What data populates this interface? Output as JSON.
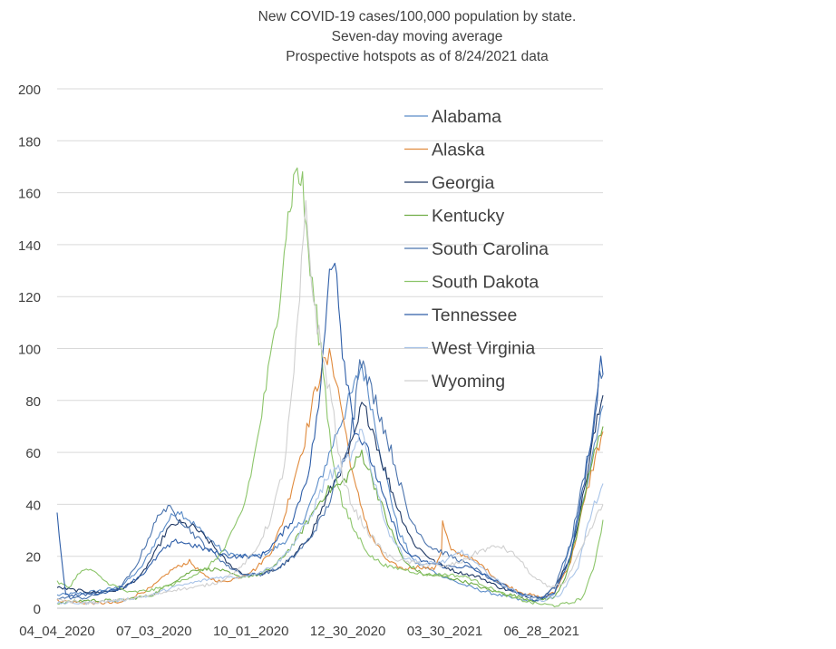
{
  "chart_data": {
    "type": "line",
    "title": [
      "New COVID-19 cases/100,000 population by state.",
      "Seven-day moving average",
      "Prospective hotspots as of 8/24/2021 data"
    ],
    "xlabel": "",
    "ylabel": "",
    "ylim": [
      0,
      200
    ],
    "yticks": [
      0,
      20,
      40,
      60,
      80,
      100,
      120,
      140,
      160,
      180,
      200
    ],
    "xlim": [
      "2020-04-04",
      "2021-08-24"
    ],
    "xticks": [
      "2020-04-04",
      "2020-07-03",
      "2020-10-01",
      "2020-12-30",
      "2021-03-30",
      "2021-06-28"
    ],
    "xtick_labels": [
      "04_04_2020",
      "07_03_2020",
      "10_01_2020",
      "12_30_2020",
      "03_30_2021",
      "06_28_2021"
    ],
    "grid": "horizontal",
    "legend_position": "top-right",
    "series": [
      {
        "name": "Alabama",
        "color": "#5b8cc8",
        "width": 1.1,
        "x": [
          "2020-04-04",
          "2020-05-01",
          "2020-06-01",
          "2020-06-20",
          "2020-07-05",
          "2020-07-15",
          "2020-07-25",
          "2020-08-05",
          "2020-08-20",
          "2020-09-05",
          "2020-09-20",
          "2020-10-05",
          "2020-10-20",
          "2020-11-05",
          "2020-11-20",
          "2020-12-05",
          "2020-12-20",
          "2021-01-05",
          "2021-01-12",
          "2021-01-20",
          "2021-02-01",
          "2021-02-15",
          "2021-03-01",
          "2021-03-20",
          "2021-04-10",
          "2021-05-01",
          "2021-05-20",
          "2021-06-10",
          "2021-06-28",
          "2021-07-10",
          "2021-07-20",
          "2021-08-01",
          "2021-08-10",
          "2021-08-18",
          "2021-08-24"
        ],
        "y": [
          5,
          6,
          8,
          15,
          26,
          33,
          38,
          34,
          28,
          22,
          20,
          20,
          22,
          27,
          35,
          50,
          68,
          85,
          94,
          80,
          55,
          30,
          18,
          14,
          10,
          7,
          5,
          3,
          3,
          6,
          17,
          35,
          50,
          68,
          78
        ]
      },
      {
        "name": "Alaska",
        "color": "#e08a3c",
        "width": 1.1,
        "x": [
          "2020-04-04",
          "2020-05-01",
          "2020-06-01",
          "2020-07-01",
          "2020-07-20",
          "2020-08-05",
          "2020-08-20",
          "2020-09-05",
          "2020-09-20",
          "2020-10-05",
          "2020-10-20",
          "2020-11-01",
          "2020-11-10",
          "2020-11-20",
          "2020-11-28",
          "2020-12-05",
          "2020-12-15",
          "2020-12-25",
          "2021-01-05",
          "2021-01-20",
          "2021-02-05",
          "2021-02-20",
          "2021-03-05",
          "2021-03-20",
          "2021-03-27",
          "2021-03-28",
          "2021-04-05",
          "2021-04-20",
          "2021-05-05",
          "2021-05-20",
          "2021-06-10",
          "2021-06-28",
          "2021-07-10",
          "2021-07-25",
          "2021-08-05",
          "2021-08-15",
          "2021-08-24"
        ],
        "y": [
          3,
          2,
          2,
          8,
          15,
          18,
          12,
          10,
          12,
          15,
          22,
          35,
          50,
          65,
          80,
          92,
          97,
          75,
          48,
          28,
          18,
          15,
          16,
          15,
          22,
          33,
          22,
          20,
          16,
          10,
          6,
          4,
          6,
          18,
          38,
          55,
          68
        ]
      },
      {
        "name": "Georgia",
        "color": "#1f3864",
        "width": 1.1,
        "x": [
          "2020-04-04",
          "2020-04-20",
          "2020-05-10",
          "2020-06-01",
          "2020-06-20",
          "2020-07-05",
          "2020-07-15",
          "2020-07-25",
          "2020-08-10",
          "2020-08-25",
          "2020-09-10",
          "2020-09-25",
          "2020-10-10",
          "2020-10-25",
          "2020-11-10",
          "2020-11-25",
          "2020-12-10",
          "2020-12-25",
          "2021-01-05",
          "2021-01-12",
          "2021-01-20",
          "2021-02-01",
          "2021-02-15",
          "2021-03-01",
          "2021-03-20",
          "2021-04-10",
          "2021-05-01",
          "2021-05-20",
          "2021-06-10",
          "2021-06-28",
          "2021-07-10",
          "2021-07-25",
          "2021-08-05",
          "2021-08-15",
          "2021-08-24"
        ],
        "y": [
          8,
          7,
          6,
          7,
          12,
          22,
          30,
          33,
          31,
          25,
          17,
          13,
          13,
          15,
          20,
          28,
          42,
          55,
          65,
          78,
          72,
          55,
          38,
          25,
          18,
          14,
          12,
          8,
          5,
          4,
          8,
          20,
          42,
          65,
          82
        ]
      },
      {
        "name": "Kentucky",
        "color": "#70ad47",
        "width": 1.1,
        "x": [
          "2020-04-04",
          "2020-05-01",
          "2020-06-01",
          "2020-07-01",
          "2020-07-20",
          "2020-08-10",
          "2020-09-01",
          "2020-09-20",
          "2020-10-10",
          "2020-10-25",
          "2020-11-10",
          "2020-11-25",
          "2020-12-10",
          "2020-12-25",
          "2021-01-05",
          "2021-01-12",
          "2021-01-20",
          "2021-02-05",
          "2021-02-20",
          "2021-03-10",
          "2021-04-01",
          "2021-04-20",
          "2021-05-10",
          "2021-06-01",
          "2021-06-20",
          "2021-07-10",
          "2021-07-20",
          "2021-08-01",
          "2021-08-10",
          "2021-08-18",
          "2021-08-24"
        ],
        "y": [
          2,
          3,
          3,
          5,
          10,
          15,
          15,
          12,
          13,
          17,
          25,
          35,
          45,
          48,
          55,
          60,
          52,
          33,
          18,
          13,
          12,
          10,
          7,
          5,
          3,
          4,
          12,
          30,
          50,
          62,
          70
        ]
      },
      {
        "name": "South Carolina",
        "color": "#4a73ad",
        "width": 1.1,
        "x": [
          "2020-04-04",
          "2020-05-01",
          "2020-06-01",
          "2020-06-15",
          "2020-07-01",
          "2020-07-10",
          "2020-07-18",
          "2020-07-28",
          "2020-08-10",
          "2020-08-25",
          "2020-09-10",
          "2020-09-25",
          "2020-10-10",
          "2020-10-25",
          "2020-11-10",
          "2020-11-25",
          "2020-12-10",
          "2020-12-25",
          "2021-01-05",
          "2021-01-10",
          "2021-01-15",
          "2021-01-25",
          "2021-02-10",
          "2021-02-25",
          "2021-03-15",
          "2021-04-05",
          "2021-04-25",
          "2021-05-15",
          "2021-06-05",
          "2021-06-28",
          "2021-07-10",
          "2021-07-25",
          "2021-08-05",
          "2021-08-15",
          "2021-08-21",
          "2021-08-24"
        ],
        "y": [
          4,
          4,
          8,
          15,
          30,
          38,
          38,
          34,
          28,
          22,
          16,
          13,
          13,
          15,
          20,
          27,
          38,
          55,
          75,
          100,
          90,
          80,
          58,
          35,
          24,
          20,
          16,
          10,
          6,
          4,
          8,
          25,
          48,
          70,
          92,
          90
        ]
      },
      {
        "name": "South Dakota",
        "color": "#8cc56a",
        "width": 1.1,
        "x": [
          "2020-04-04",
          "2020-04-15",
          "2020-04-25",
          "2020-05-05",
          "2020-05-20",
          "2020-06-10",
          "2020-07-01",
          "2020-07-20",
          "2020-08-05",
          "2020-08-20",
          "2020-09-05",
          "2020-09-15",
          "2020-09-25",
          "2020-10-05",
          "2020-10-15",
          "2020-10-25",
          "2020-11-01",
          "2020-11-08",
          "2020-11-13",
          "2020-11-18",
          "2020-11-25",
          "2020-12-05",
          "2020-12-15",
          "2020-12-25",
          "2021-01-05",
          "2021-01-20",
          "2021-02-05",
          "2021-02-20",
          "2021-03-10",
          "2021-04-01",
          "2021-04-20",
          "2021-05-10",
          "2021-06-01",
          "2021-06-20",
          "2021-07-10",
          "2021-07-25",
          "2021-08-05",
          "2021-08-15",
          "2021-08-24"
        ],
        "y": [
          10,
          8,
          14,
          15,
          10,
          6,
          7,
          9,
          12,
          15,
          22,
          30,
          40,
          60,
          85,
          110,
          140,
          160,
          170,
          162,
          130,
          100,
          60,
          40,
          30,
          20,
          16,
          15,
          13,
          13,
          12,
          8,
          4,
          2,
          1,
          2,
          4,
          15,
          34
        ]
      },
      {
        "name": "Tennessee",
        "color": "#2e5ea8",
        "width": 1.1,
        "x": [
          "2020-04-04",
          "2020-04-12",
          "2020-04-25",
          "2020-05-15",
          "2020-06-05",
          "2020-06-25",
          "2020-07-10",
          "2020-07-25",
          "2020-08-10",
          "2020-08-25",
          "2020-09-10",
          "2020-09-25",
          "2020-10-10",
          "2020-10-25",
          "2020-11-10",
          "2020-11-25",
          "2020-12-05",
          "2020-12-13",
          "2020-12-18",
          "2020-12-25",
          "2021-01-05",
          "2021-01-20",
          "2021-02-05",
          "2021-02-20",
          "2021-03-10",
          "2021-03-30",
          "2021-04-20",
          "2021-05-10",
          "2021-06-01",
          "2021-06-20",
          "2021-07-10",
          "2021-07-25",
          "2021-08-05",
          "2021-08-15",
          "2021-08-22",
          "2021-08-24"
        ],
        "y": [
          36,
          5,
          5,
          6,
          8,
          14,
          22,
          26,
          24,
          22,
          20,
          20,
          20,
          26,
          35,
          55,
          85,
          130,
          138,
          100,
          70,
          58,
          38,
          22,
          18,
          16,
          16,
          12,
          7,
          3,
          6,
          20,
          45,
          70,
          93,
          90
        ]
      },
      {
        "name": "West Virginia",
        "color": "#a9c4e8",
        "width": 1.1,
        "x": [
          "2020-04-04",
          "2020-05-01",
          "2020-06-01",
          "2020-07-01",
          "2020-07-20",
          "2020-08-10",
          "2020-09-01",
          "2020-09-20",
          "2020-10-10",
          "2020-10-25",
          "2020-11-10",
          "2020-11-25",
          "2020-12-10",
          "2020-12-25",
          "2021-01-05",
          "2021-01-12",
          "2021-01-20",
          "2021-02-05",
          "2021-02-20",
          "2021-03-10",
          "2021-03-30",
          "2021-04-15",
          "2021-05-01",
          "2021-05-20",
          "2021-06-10",
          "2021-06-28",
          "2021-07-15",
          "2021-08-01",
          "2021-08-10",
          "2021-08-18",
          "2021-08-24"
        ],
        "y": [
          2,
          2,
          3,
          5,
          8,
          10,
          12,
          12,
          14,
          17,
          25,
          35,
          50,
          55,
          60,
          68,
          55,
          30,
          20,
          17,
          18,
          22,
          16,
          10,
          5,
          3,
          5,
          16,
          32,
          42,
          48
        ]
      },
      {
        "name": "Wyoming",
        "color": "#d0d0d0",
        "width": 1.1,
        "x": [
          "2020-04-04",
          "2020-05-01",
          "2020-06-01",
          "2020-07-01",
          "2020-07-20",
          "2020-08-10",
          "2020-09-01",
          "2020-09-20",
          "2020-10-05",
          "2020-10-20",
          "2020-11-01",
          "2020-11-10",
          "2020-11-17",
          "2020-11-21",
          "2020-11-28",
          "2020-12-05",
          "2020-12-15",
          "2020-12-25",
          "2021-01-05",
          "2021-01-20",
          "2021-02-05",
          "2021-02-20",
          "2021-03-10",
          "2021-03-30",
          "2021-04-15",
          "2021-05-01",
          "2021-05-20",
          "2021-06-05",
          "2021-06-20",
          "2021-07-05",
          "2021-07-20",
          "2021-08-01",
          "2021-08-10",
          "2021-08-18",
          "2021-08-24"
        ],
        "y": [
          3,
          2,
          3,
          5,
          7,
          8,
          10,
          15,
          22,
          35,
          55,
          90,
          130,
          152,
          120,
          100,
          80,
          50,
          38,
          28,
          20,
          18,
          17,
          16,
          18,
          22,
          24,
          20,
          12,
          8,
          10,
          20,
          28,
          35,
          40
        ]
      }
    ]
  }
}
